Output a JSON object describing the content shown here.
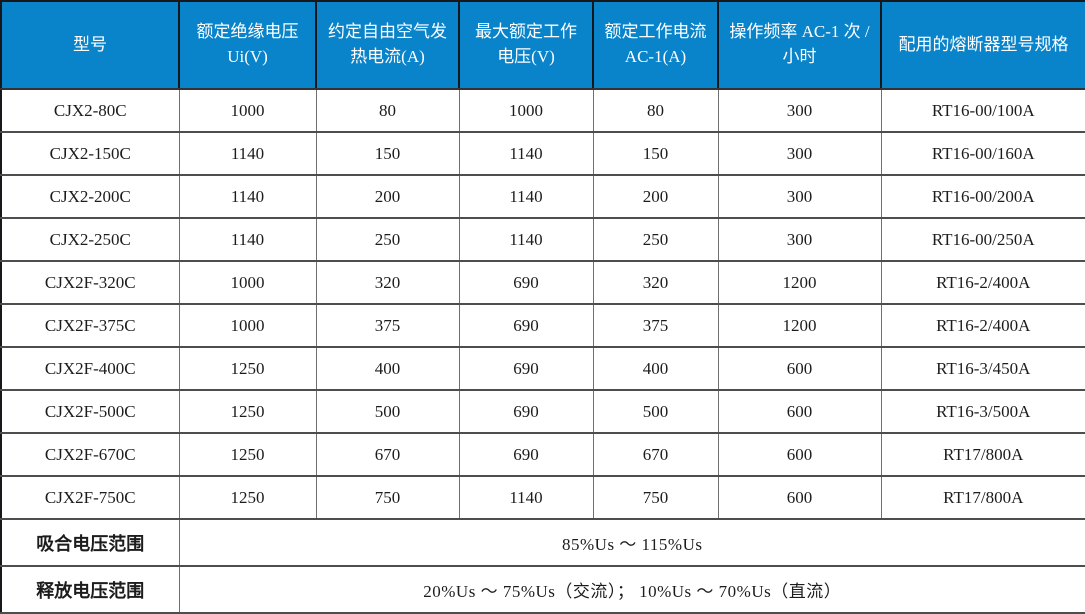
{
  "colors": {
    "header_bg": "#0983C9",
    "header_text": "#FFFFFF",
    "body_text": "#1C1C1C",
    "grid_vertical": "#6F6F6F",
    "grid_horizontal": "#4D4D4D",
    "outer_border": "#17171C"
  },
  "table": {
    "columns": [
      "型号",
      "额定绝缘电压 Ui(V)",
      "约定自由空气发热电流(A)",
      "最大额定工作电压(V)",
      "额定工作电流 AC-1(A)",
      "操作频率 AC-1 次 / 小时",
      "配用的熔断器型号规格"
    ],
    "rows": [
      [
        "CJX2-80C",
        "1000",
        "80",
        "1000",
        "80",
        "300",
        "RT16-00/100A"
      ],
      [
        "CJX2-150C",
        "1140",
        "150",
        "1140",
        "150",
        "300",
        "RT16-00/160A"
      ],
      [
        "CJX2-200C",
        "1140",
        "200",
        "1140",
        "200",
        "300",
        "RT16-00/200A"
      ],
      [
        "CJX2-250C",
        "1140",
        "250",
        "1140",
        "250",
        "300",
        "RT16-00/250A"
      ],
      [
        "CJX2F-320C",
        "1000",
        "320",
        "690",
        "320",
        "1200",
        "RT16-2/400A"
      ],
      [
        "CJX2F-375C",
        "1000",
        "375",
        "690",
        "375",
        "1200",
        "RT16-2/400A"
      ],
      [
        "CJX2F-400C",
        "1250",
        "400",
        "690",
        "400",
        "600",
        "RT16-3/450A"
      ],
      [
        "CJX2F-500C",
        "1250",
        "500",
        "690",
        "500",
        "600",
        "RT16-3/500A"
      ],
      [
        "CJX2F-670C",
        "1250",
        "670",
        "690",
        "670",
        "600",
        "RT17/800A"
      ],
      [
        "CJX2F-750C",
        "1250",
        "750",
        "1140",
        "750",
        "600",
        "RT17/800A"
      ]
    ],
    "footers": [
      {
        "label": "吸合电压范围",
        "value": "85%Us ～ 115%Us"
      },
      {
        "label": "释放电压范围",
        "value": "20%Us ～ 75%Us（交流）； 10%Us ～ 70%Us（直流）"
      }
    ]
  }
}
